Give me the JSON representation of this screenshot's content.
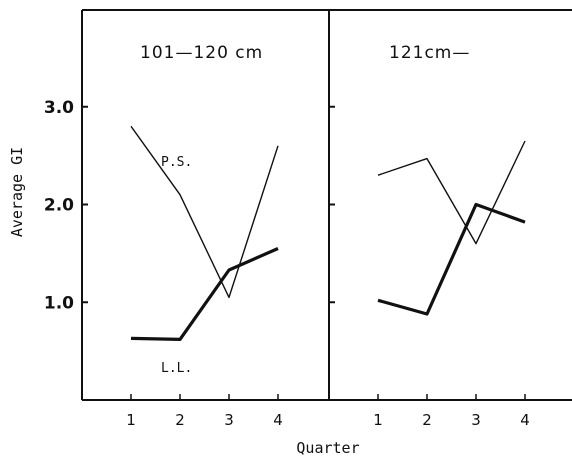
{
  "chart_data": {
    "type": "line",
    "xlabel": "Quarter",
    "ylabel": "Average GI",
    "x_ticks": [
      "1",
      "2",
      "3",
      "4"
    ],
    "y_ticks": [
      "1.0",
      "2.0",
      "3.0"
    ],
    "ylim": [
      0.0,
      4.0
    ],
    "panels": [
      {
        "title": "101—120 cm",
        "x": [
          1,
          2,
          3,
          4
        ],
        "series": [
          {
            "name": "P.S.",
            "values": [
              2.8,
              2.1,
              1.05,
              2.6
            ],
            "weight": "thin"
          },
          {
            "name": "L.L.",
            "values": [
              0.63,
              0.62,
              1.33,
              1.55
            ],
            "weight": "thick"
          }
        ]
      },
      {
        "title": "121cm—",
        "x": [
          1,
          2,
          3,
          4
        ],
        "series": [
          {
            "values": [
              2.3,
              2.47,
              1.6,
              2.65
            ],
            "weight": "thin"
          },
          {
            "values": [
              1.02,
              0.88,
              2.0,
              1.82
            ],
            "weight": "thick"
          }
        ]
      }
    ]
  }
}
